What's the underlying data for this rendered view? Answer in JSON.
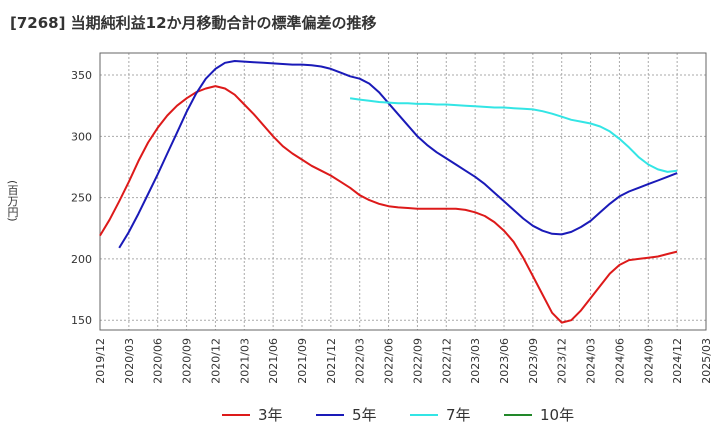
{
  "title": "[7268]  当期純利益12か月移動合計の標準偏差の推移",
  "y_unit": "(百万円)",
  "chart_data": {
    "type": "line",
    "title": "[7268]  当期純利益12か月移動合計の標準偏差の推移",
    "ylabel": "(百万円)",
    "xlabel": "",
    "ylim": [
      142,
      368
    ],
    "y_ticks": [
      150,
      200,
      250,
      300,
      350
    ],
    "x_ticks": [
      "2019/12",
      "2020/03",
      "2020/06",
      "2020/09",
      "2020/12",
      "2021/03",
      "2021/06",
      "2021/09",
      "2021/12",
      "2022/03",
      "2022/06",
      "2022/09",
      "2022/12",
      "2023/03",
      "2023/06",
      "2023/09",
      "2023/12",
      "2024/03",
      "2024/06",
      "2024/09",
      "2024/12",
      "2025/03"
    ],
    "grid": true,
    "legend_position": "bottom",
    "series": [
      {
        "name": "3年",
        "color": "#dd1a1a",
        "points": [
          [
            "2019/12",
            219
          ],
          [
            "2020/01",
            232
          ],
          [
            "2020/02",
            247
          ],
          [
            "2020/03",
            263
          ],
          [
            "2020/04",
            280
          ],
          [
            "2020/05",
            295
          ],
          [
            "2020/06",
            307
          ],
          [
            "2020/07",
            317
          ],
          [
            "2020/08",
            325
          ],
          [
            "2020/09",
            331
          ],
          [
            "2020/10",
            336
          ],
          [
            "2020/11",
            339
          ],
          [
            "2020/12",
            341
          ],
          [
            "2021/01",
            339
          ],
          [
            "2021/02",
            334
          ],
          [
            "2021/03",
            326
          ],
          [
            "2021/04",
            318
          ],
          [
            "2021/05",
            309
          ],
          [
            "2021/06",
            300
          ],
          [
            "2021/07",
            292
          ],
          [
            "2021/08",
            286
          ],
          [
            "2021/09",
            281
          ],
          [
            "2021/10",
            276
          ],
          [
            "2021/11",
            272
          ],
          [
            "2021/12",
            268
          ],
          [
            "2022/01",
            263
          ],
          [
            "2022/02",
            258
          ],
          [
            "2022/03",
            252
          ],
          [
            "2022/04",
            248
          ],
          [
            "2022/05",
            245
          ],
          [
            "2022/06",
            243
          ],
          [
            "2022/07",
            242
          ],
          [
            "2022/08",
            241.5
          ],
          [
            "2022/09",
            241
          ],
          [
            "2022/10",
            241
          ],
          [
            "2022/11",
            241
          ],
          [
            "2022/12",
            241
          ],
          [
            "2023/01",
            241
          ],
          [
            "2023/02",
            240
          ],
          [
            "2023/03",
            238
          ],
          [
            "2023/04",
            235
          ],
          [
            "2023/05",
            230
          ],
          [
            "2023/06",
            223
          ],
          [
            "2023/07",
            214
          ],
          [
            "2023/08",
            201
          ],
          [
            "2023/09",
            186
          ],
          [
            "2023/10",
            171
          ],
          [
            "2023/11",
            156
          ],
          [
            "2023/12",
            148
          ],
          [
            "2024/01",
            150
          ],
          [
            "2024/02",
            158
          ],
          [
            "2024/03",
            168
          ],
          [
            "2024/04",
            178
          ],
          [
            "2024/05",
            188
          ],
          [
            "2024/06",
            195
          ],
          [
            "2024/07",
            199
          ],
          [
            "2024/08",
            200
          ],
          [
            "2024/09",
            201
          ],
          [
            "2024/10",
            202
          ],
          [
            "2024/11",
            204
          ],
          [
            "2024/12",
            206
          ]
        ]
      },
      {
        "name": "5年",
        "color": "#1a1ab8",
        "points": [
          [
            "2020/02",
            209
          ],
          [
            "2020/03",
            222
          ],
          [
            "2020/04",
            237
          ],
          [
            "2020/05",
            253
          ],
          [
            "2020/06",
            269
          ],
          [
            "2020/07",
            286
          ],
          [
            "2020/08",
            303
          ],
          [
            "2020/09",
            320
          ],
          [
            "2020/10",
            335
          ],
          [
            "2020/11",
            347
          ],
          [
            "2020/12",
            355
          ],
          [
            "2021/01",
            360
          ],
          [
            "2021/02",
            361.5
          ],
          [
            "2021/03",
            361
          ],
          [
            "2021/04",
            360.5
          ],
          [
            "2021/05",
            360
          ],
          [
            "2021/06",
            359.5
          ],
          [
            "2021/07",
            359
          ],
          [
            "2021/08",
            358.5
          ],
          [
            "2021/09",
            358.5
          ],
          [
            "2021/10",
            358
          ],
          [
            "2021/11",
            357
          ],
          [
            "2021/12",
            355
          ],
          [
            "2022/01",
            352
          ],
          [
            "2022/02",
            349
          ],
          [
            "2022/03",
            347
          ],
          [
            "2022/04",
            343
          ],
          [
            "2022/05",
            336
          ],
          [
            "2022/06",
            327
          ],
          [
            "2022/07",
            318
          ],
          [
            "2022/08",
            309
          ],
          [
            "2022/09",
            300
          ],
          [
            "2022/10",
            293
          ],
          [
            "2022/11",
            287
          ],
          [
            "2022/12",
            282
          ],
          [
            "2023/01",
            277
          ],
          [
            "2023/02",
            272
          ],
          [
            "2023/03",
            267
          ],
          [
            "2023/04",
            261
          ],
          [
            "2023/05",
            254
          ],
          [
            "2023/06",
            247
          ],
          [
            "2023/07",
            240
          ],
          [
            "2023/08",
            233
          ],
          [
            "2023/09",
            227
          ],
          [
            "2023/10",
            223
          ],
          [
            "2023/11",
            220.5
          ],
          [
            "2023/12",
            220
          ],
          [
            "2024/01",
            222
          ],
          [
            "2024/02",
            226
          ],
          [
            "2024/03",
            231
          ],
          [
            "2024/04",
            238
          ],
          [
            "2024/05",
            245
          ],
          [
            "2024/06",
            251
          ],
          [
            "2024/07",
            255
          ],
          [
            "2024/08",
            258
          ],
          [
            "2024/09",
            261
          ],
          [
            "2024/10",
            264
          ],
          [
            "2024/11",
            267
          ],
          [
            "2024/12",
            270
          ]
        ]
      },
      {
        "name": "7年",
        "color": "#33e5e5",
        "points": [
          [
            "2022/02",
            331
          ],
          [
            "2022/03",
            330
          ],
          [
            "2022/04",
            329
          ],
          [
            "2022/05",
            328
          ],
          [
            "2022/06",
            327.5
          ],
          [
            "2022/07",
            327
          ],
          [
            "2022/08",
            327
          ],
          [
            "2022/09",
            326.5
          ],
          [
            "2022/10",
            326.5
          ],
          [
            "2022/11",
            326
          ],
          [
            "2022/12",
            326
          ],
          [
            "2023/01",
            325.5
          ],
          [
            "2023/02",
            325
          ],
          [
            "2023/03",
            324.5
          ],
          [
            "2023/04",
            324
          ],
          [
            "2023/05",
            323.5
          ],
          [
            "2023/06",
            323.5
          ],
          [
            "2023/07",
            323
          ],
          [
            "2023/08",
            322.5
          ],
          [
            "2023/09",
            322
          ],
          [
            "2023/10",
            320.5
          ],
          [
            "2023/11",
            318.5
          ],
          [
            "2023/12",
            316
          ],
          [
            "2024/01",
            313.5
          ],
          [
            "2024/02",
            312
          ],
          [
            "2024/03",
            310.5
          ],
          [
            "2024/04",
            308
          ],
          [
            "2024/05",
            304
          ],
          [
            "2024/06",
            298
          ],
          [
            "2024/07",
            291
          ],
          [
            "2024/08",
            283
          ],
          [
            "2024/09",
            277
          ],
          [
            "2024/10",
            273
          ],
          [
            "2024/11",
            271
          ],
          [
            "2024/12",
            272
          ]
        ]
      },
      {
        "name": "10年",
        "color": "#22882a",
        "points": []
      }
    ]
  }
}
